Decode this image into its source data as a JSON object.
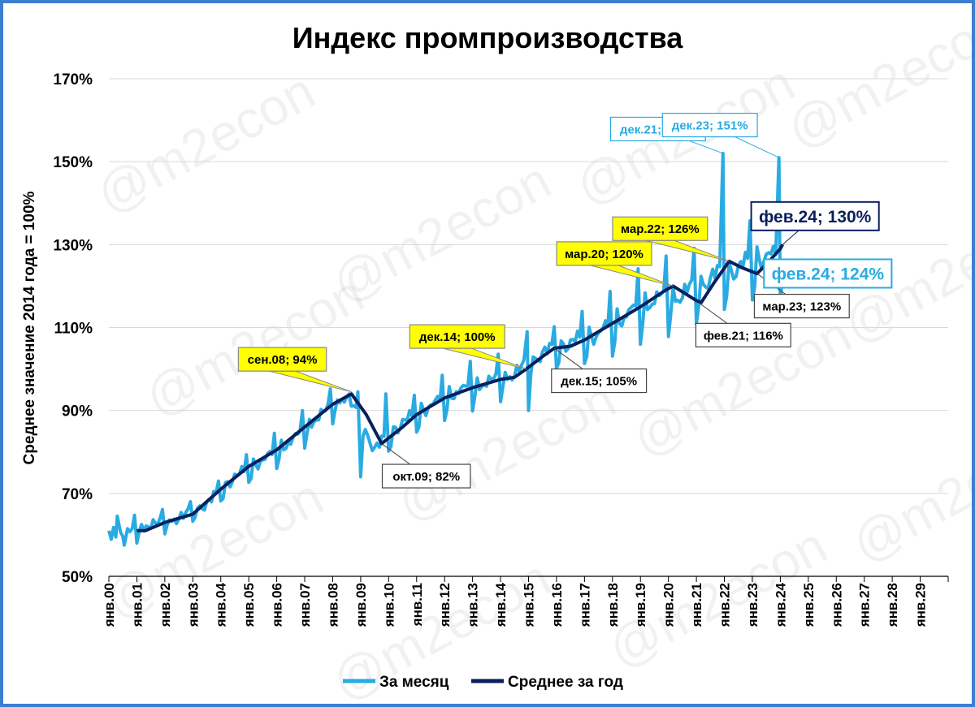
{
  "watermark": "@m2econ",
  "colors": {
    "monthly": "#29abe2",
    "annual": "#0a1f5c",
    "callout_yellow": "#ffff00",
    "grid": "#d9d9d9",
    "frame": "#3a7fd0"
  },
  "chart_data": {
    "type": "line",
    "title": "Индекс промпроизводства",
    "ylabel": "Среднее значение 2014 года = 100%",
    "xlabel": "",
    "ylim": [
      50,
      170
    ],
    "yticks": [
      50,
      70,
      90,
      110,
      130,
      150,
      170
    ],
    "ytick_labels": [
      "50%",
      "70%",
      "90%",
      "110%",
      "130%",
      "150%",
      "170%"
    ],
    "xlim": [
      2000,
      2030
    ],
    "xtick_labels": [
      "янв.00",
      "янв.01",
      "янв.02",
      "янв.03",
      "янв.04",
      "янв.05",
      "янв.06",
      "янв.07",
      "янв.08",
      "янв.09",
      "янв.10",
      "янв.11",
      "янв.12",
      "янв.13",
      "янв.14",
      "янв.15",
      "янв.16",
      "янв.17",
      "янв.18",
      "янв.19",
      "янв.20",
      "янв.21",
      "янв.22",
      "янв.23",
      "янв.24",
      "янв.25",
      "янв.26",
      "янв.27",
      "янв.28",
      "янв.29"
    ],
    "grid": "horizontal",
    "legend_position": "bottom",
    "series": [
      {
        "name": "За месяц",
        "type": "line",
        "note": "monthly index; seasonal pattern (low Jan, peak Dec)",
        "annual_level": [
          [
            2000,
            60.0
          ],
          [
            2001,
            62.0
          ],
          [
            2002,
            63.5
          ],
          [
            2003,
            67.0
          ],
          [
            2004,
            73.5
          ],
          [
            2005,
            77.5
          ],
          [
            2006,
            82.0
          ],
          [
            2007,
            88.0
          ],
          [
            2008,
            93.0
          ],
          [
            2009,
            80.0
          ],
          [
            2010,
            86.5
          ],
          [
            2011,
            90.5
          ],
          [
            2012,
            94.0
          ],
          [
            2013,
            96.0
          ],
          [
            2014,
            98.0
          ],
          [
            2015,
            103.0
          ],
          [
            2016,
            105.5
          ],
          [
            2017,
            107.5
          ],
          [
            2018,
            112.0
          ],
          [
            2019,
            115.5
          ],
          [
            2020,
            116.5
          ],
          [
            2021,
            120.5
          ],
          [
            2022,
            123.0
          ],
          [
            2023,
            126.0
          ],
          [
            2024,
            124.0
          ]
        ],
        "seasonal_amplitude": [
          [
            2000,
            3
          ],
          [
            2004,
            4
          ],
          [
            2008,
            5
          ],
          [
            2012,
            6
          ],
          [
            2016,
            7
          ],
          [
            2020,
            11
          ],
          [
            2023,
            12
          ]
        ],
        "points": [
          {
            "x": 2000.0,
            "y": 61.0
          },
          {
            "x": 2000.3,
            "y": 64.5
          },
          {
            "x": 2000.55,
            "y": 57.5
          },
          {
            "x": 2008.9,
            "y": 94.5
          },
          {
            "x": 2009.0,
            "y": 74.0
          },
          {
            "x": 2009.9,
            "y": 94.0
          },
          {
            "x": 2014.95,
            "y": 109.0
          },
          {
            "x": 2015.0,
            "y": 90.0
          },
          {
            "x": 2021.95,
            "y": 152.0
          },
          {
            "x": 2023.95,
            "y": 151.0
          },
          {
            "x": 2024.1,
            "y": 124.0
          }
        ]
      },
      {
        "name": "Среднее за год",
        "type": "line",
        "x": [
          2001.0,
          2001.3,
          2002.0,
          2003.0,
          2003.5,
          2004.0,
          2005.0,
          2006.0,
          2007.0,
          2008.0,
          2008.67,
          2009.2,
          2009.75,
          2010.5,
          2011.0,
          2012.0,
          2013.0,
          2014.0,
          2014.5,
          2014.92,
          2015.5,
          2015.92,
          2016.5,
          2017.0,
          2018.0,
          2019.0,
          2019.9,
          2020.17,
          2021.0,
          2021.17,
          2021.6,
          2022.17,
          2022.6,
          2023.17,
          2023.6,
          2024.0,
          2024.08
        ],
        "y": [
          61.0,
          61.0,
          63.0,
          65.0,
          68.0,
          71.0,
          76.5,
          80.5,
          86.0,
          91.5,
          94.0,
          89.0,
          82.0,
          86.0,
          89.0,
          93.0,
          95.5,
          97.5,
          98.0,
          100.0,
          103.0,
          105.0,
          105.5,
          107.0,
          111.0,
          115.0,
          119.0,
          120.0,
          116.5,
          116.0,
          120.5,
          126.0,
          124.5,
          123.0,
          126.0,
          129.0,
          130.0
        ]
      }
    ],
    "annotations": [
      {
        "text": "сен.08; 94%",
        "x": 2008.67,
        "y": 94.5,
        "style": "yellow",
        "position": "upper-left"
      },
      {
        "text": "окт.09; 82%",
        "x": 2009.75,
        "y": 82.0,
        "style": "plain",
        "position": "lower-right"
      },
      {
        "text": "дек.14; 100%",
        "x": 2014.92,
        "y": 100.0,
        "style": "yellow",
        "position": "upper-left"
      },
      {
        "text": "дек.15; 105%",
        "x": 2015.92,
        "y": 105.0,
        "style": "plain",
        "position": "lower-right"
      },
      {
        "text": "мар.20; 120%",
        "x": 2020.17,
        "y": 120.0,
        "style": "yellow",
        "position": "upper-left"
      },
      {
        "text": "фев.21; 116%",
        "x": 2021.08,
        "y": 116.0,
        "style": "plain",
        "position": "lower-right"
      },
      {
        "text": "мар.22; 126%",
        "x": 2022.17,
        "y": 126.0,
        "style": "yellow",
        "position": "upper-left"
      },
      {
        "text": "мар.23; 123%",
        "x": 2023.17,
        "y": 123.0,
        "style": "plain",
        "position": "lower-right"
      },
      {
        "text": "дек.21; 152%",
        "x": 2021.95,
        "y": 152.0,
        "style": "cyan-outline",
        "position": "left"
      },
      {
        "text": "дек.23; 151%",
        "x": 2023.95,
        "y": 151.0,
        "style": "cyan-outline",
        "position": "upper-left"
      },
      {
        "text": "фев.24; 130%",
        "x": 2024.08,
        "y": 130.0,
        "style": "navy-outline-large",
        "position": "upper-right"
      },
      {
        "text": "фев.24; 124%",
        "x": 2024.1,
        "y": 124.0,
        "style": "cyan-outline-large",
        "position": "right"
      }
    ]
  }
}
